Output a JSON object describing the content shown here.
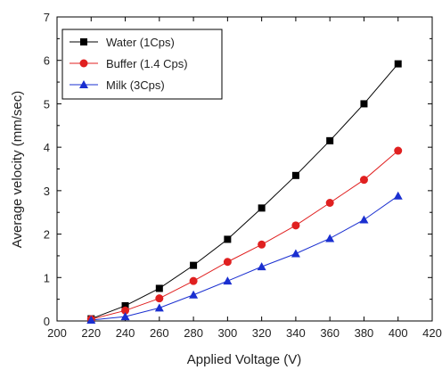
{
  "chart_data": {
    "type": "line",
    "xlabel": "Applied Voltage (V)",
    "ylabel": "Average velocity (mm/sec)",
    "xlim": [
      200,
      420
    ],
    "ylim": [
      0,
      7
    ],
    "x_ticks": [
      200,
      220,
      240,
      260,
      280,
      300,
      320,
      340,
      360,
      380,
      400,
      420
    ],
    "y_ticks": [
      0,
      1,
      2,
      3,
      4,
      5,
      6,
      7
    ],
    "grid": false,
    "legend_position": "top-left",
    "x": [
      220,
      240,
      260,
      280,
      300,
      320,
      340,
      360,
      380,
      400
    ],
    "series": [
      {
        "name": "Water (1Cps)",
        "marker": "square",
        "color": "#000000",
        "values": [
          0.05,
          0.35,
          0.75,
          1.28,
          1.88,
          2.6,
          3.35,
          4.15,
          5.0,
          5.92
        ]
      },
      {
        "name": "Buffer (1.4 Cps)",
        "marker": "circle",
        "color": "#e02020",
        "values": [
          0.04,
          0.24,
          0.52,
          0.92,
          1.36,
          1.76,
          2.2,
          2.72,
          3.25,
          3.92
        ]
      },
      {
        "name": "Milk (3Cps)",
        "marker": "triangle",
        "color": "#1a2fd0",
        "values": [
          0.02,
          0.1,
          0.3,
          0.6,
          0.92,
          1.25,
          1.55,
          1.9,
          2.33,
          2.88
        ]
      }
    ]
  }
}
